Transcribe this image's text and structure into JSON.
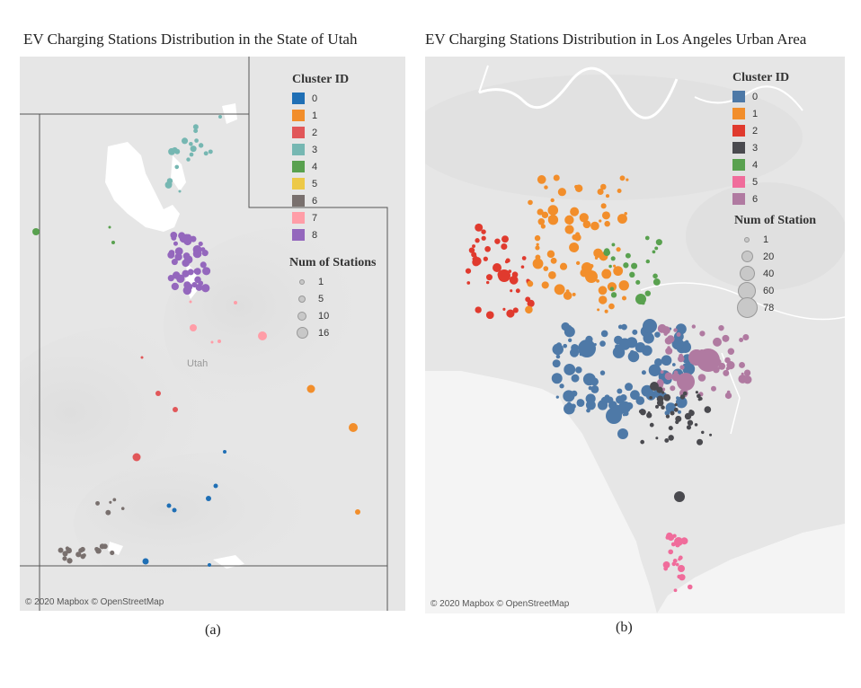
{
  "left": {
    "title": "EV Charging Stations Distribution in the State of Utah",
    "caption": "(a)",
    "credit": "© 2020 Mapbox © OpenStreetMap",
    "place_label": "Utah",
    "legend": {
      "cluster_header": "Cluster ID",
      "clusters": [
        {
          "id": "0",
          "color": "#1f6fb5"
        },
        {
          "id": "1",
          "color": "#f28e2b"
        },
        {
          "id": "2",
          "color": "#e15759"
        },
        {
          "id": "3",
          "color": "#76b7b2"
        },
        {
          "id": "4",
          "color": "#59a14f"
        },
        {
          "id": "5",
          "color": "#edc948"
        },
        {
          "id": "6",
          "color": "#79706e"
        },
        {
          "id": "7",
          "color": "#ff9da7"
        },
        {
          "id": "8",
          "color": "#9467bd"
        }
      ],
      "size_header": "Num of Stations",
      "sizes": [
        "1",
        "5",
        "10",
        "16"
      ]
    }
  },
  "right": {
    "title": "EV Charging Stations Distribution in Los Angeles Urban Area",
    "caption": "(b)",
    "credit": "© 2020 Mapbox © OpenStreetMap",
    "legend": {
      "cluster_header": "Cluster ID",
      "clusters": [
        {
          "id": "0",
          "color": "#4e79a7"
        },
        {
          "id": "1",
          "color": "#f28e2b"
        },
        {
          "id": "2",
          "color": "#e03a2e"
        },
        {
          "id": "3",
          "color": "#4a4a4f"
        },
        {
          "id": "4",
          "color": "#59a14f"
        },
        {
          "id": "5",
          "color": "#f06c9b"
        },
        {
          "id": "6",
          "color": "#b07aa1"
        }
      ],
      "size_header": "Num of Station",
      "sizes": [
        "1",
        "20",
        "40",
        "60",
        "78"
      ]
    }
  }
}
